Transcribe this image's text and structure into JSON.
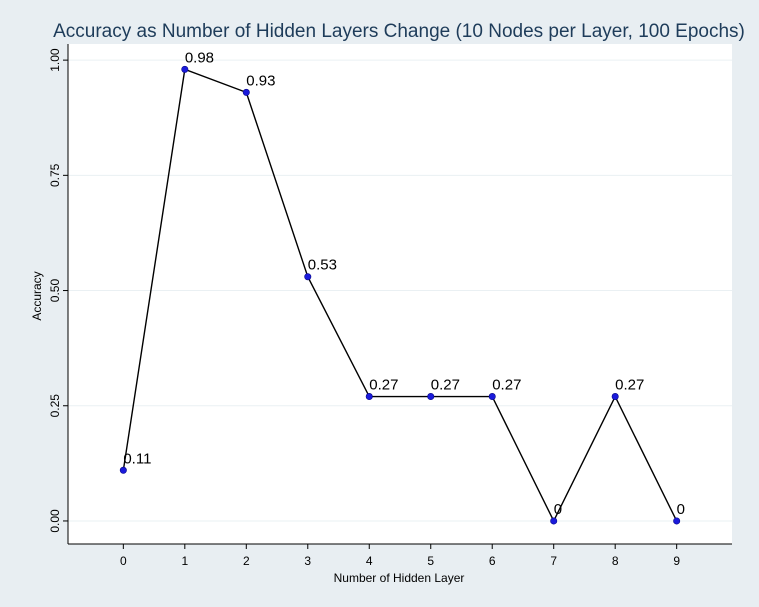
{
  "chart_data": {
    "type": "line",
    "title": "Accuracy as Number of Hidden Layers Change (10 Nodes per Layer, 100 Epochs)",
    "xlabel": "Number of Hidden Layer",
    "ylabel": "Accuracy",
    "x": [
      0,
      1,
      2,
      3,
      4,
      5,
      6,
      7,
      8,
      9
    ],
    "x_tick_labels": [
      "0",
      "1",
      "2",
      "3",
      "4",
      "5",
      "6",
      "7",
      "8",
      "9"
    ],
    "y_ticks": [
      0,
      0.25,
      0.5,
      0.75,
      1.0
    ],
    "y_tick_labels": [
      "0.00",
      "0.25",
      "0.50",
      "0.75",
      "1.00"
    ],
    "series": [
      {
        "values": [
          0.11,
          0.98,
          0.93,
          0.53,
          0.27,
          0.27,
          0.27,
          0,
          0.27,
          0
        ],
        "labels": [
          "0.11",
          "0.98",
          "0.93",
          "0.53",
          "0.27",
          "0.27",
          "0.27",
          "0",
          "0.27",
          "0"
        ]
      }
    ],
    "xlim": [
      -0.9,
      9.9
    ],
    "ylim": [
      -0.05,
      1.035
    ],
    "grid": true,
    "colors": {
      "background": "#e8eef2",
      "plot_background": "#ffffff",
      "line": "#000000",
      "marker": "#1a1adb",
      "title": "#1e3c5a",
      "grid": "#eaf0f3"
    }
  }
}
